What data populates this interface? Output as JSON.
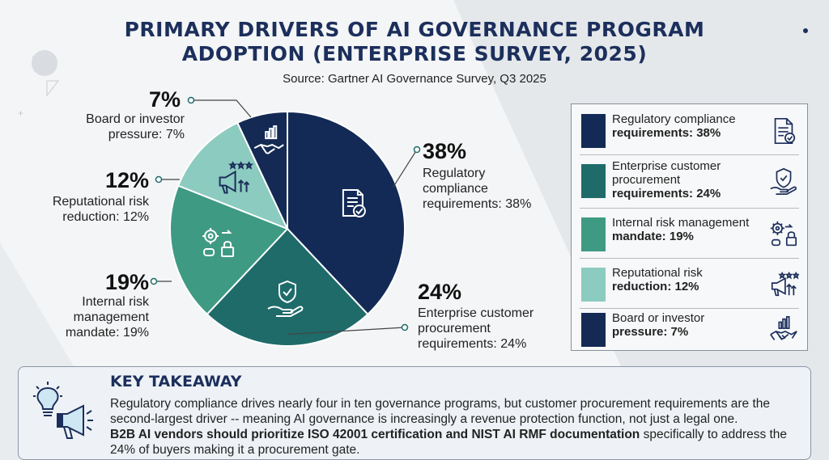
{
  "title_line1": "PRIMARY DRIVERS OF AI GOVERNANCE PROGRAM",
  "title_line2": "ADOPTION (ENTERPRISE SURVEY, 2025)",
  "source": "Source: Gartner AI Governance Survey, Q3 2025",
  "chart_data": {
    "type": "pie",
    "slices": [
      {
        "name": "Regulatory compliance requirements",
        "value": 38,
        "pct_label": "38%",
        "label_line1": "Regulatory",
        "label_line2": "compliance",
        "label_line3": "requirements: 38%",
        "color": "#132a56",
        "icon": "document-check-icon"
      },
      {
        "name": "Enterprise customer procurement requirements",
        "value": 24,
        "pct_label": "24%",
        "label_line1": "Enterprise customer",
        "label_line2": "procurement",
        "label_line3": "requirements: 24%",
        "color": "#1e6b6a",
        "icon": "shield-hand-icon"
      },
      {
        "name": "Internal risk management mandate",
        "value": 19,
        "pct_label": "19%",
        "label_line1": "Internal risk",
        "label_line2": "management",
        "label_line3": "mandate: 19%",
        "color": "#3f9a84",
        "icon": "gear-lock-icon"
      },
      {
        "name": "Reputational risk reduction",
        "value": 12,
        "pct_label": "12%",
        "label_line1": "Reputational risk",
        "label_line2": "reduction: 12%",
        "color": "#8ccbbf",
        "icon": "megaphone-stars-icon"
      },
      {
        "name": "Board or investor pressure",
        "value": 7,
        "pct_label": "7%",
        "label_line1": "Board or investor",
        "label_line2": "pressure: 7%",
        "color": "#142a55",
        "icon": "handshake-chart-icon"
      }
    ]
  },
  "legend": [
    {
      "line1": "Regulatory compliance",
      "line2": "requirements: 38%",
      "color": "#132a56",
      "icon": "document-check-icon"
    },
    {
      "line1": "Enterprise customer",
      "line2": "procurement",
      "line3": "requirements: 24%",
      "color": "#1e6b6a",
      "icon": "shield-hand-icon"
    },
    {
      "line1": "Internal risk management",
      "line2": "mandate: 19%",
      "color": "#3f9a84",
      "icon": "gear-lock-icon"
    },
    {
      "line1": "Reputational risk",
      "line2": "reduction: 12%",
      "color": "#8ccbbf",
      "icon": "megaphone-stars-icon"
    },
    {
      "line1": "Board or investor",
      "line2": "pressure: 7%",
      "color": "#142a55",
      "icon": "handshake-chart-icon"
    }
  ],
  "takeaway": {
    "title": "KEY TAKEAWAY",
    "line1": "Regulatory compliance drives nearly four in ten governance programs, but customer procurement requirements are the",
    "line2": "second-largest driver -- meaning AI governance is increasingly a revenue protection function, not just a legal one.",
    "line3_bold": "B2B AI vendors should prioritize ISO 42001 certification and NIST AI RMF documentation",
    "line3_rest": " specifically to address the",
    "line4": "24% of buyers making it a procurement gate.",
    "icon": "lightbulb-megaphone-icon"
  }
}
